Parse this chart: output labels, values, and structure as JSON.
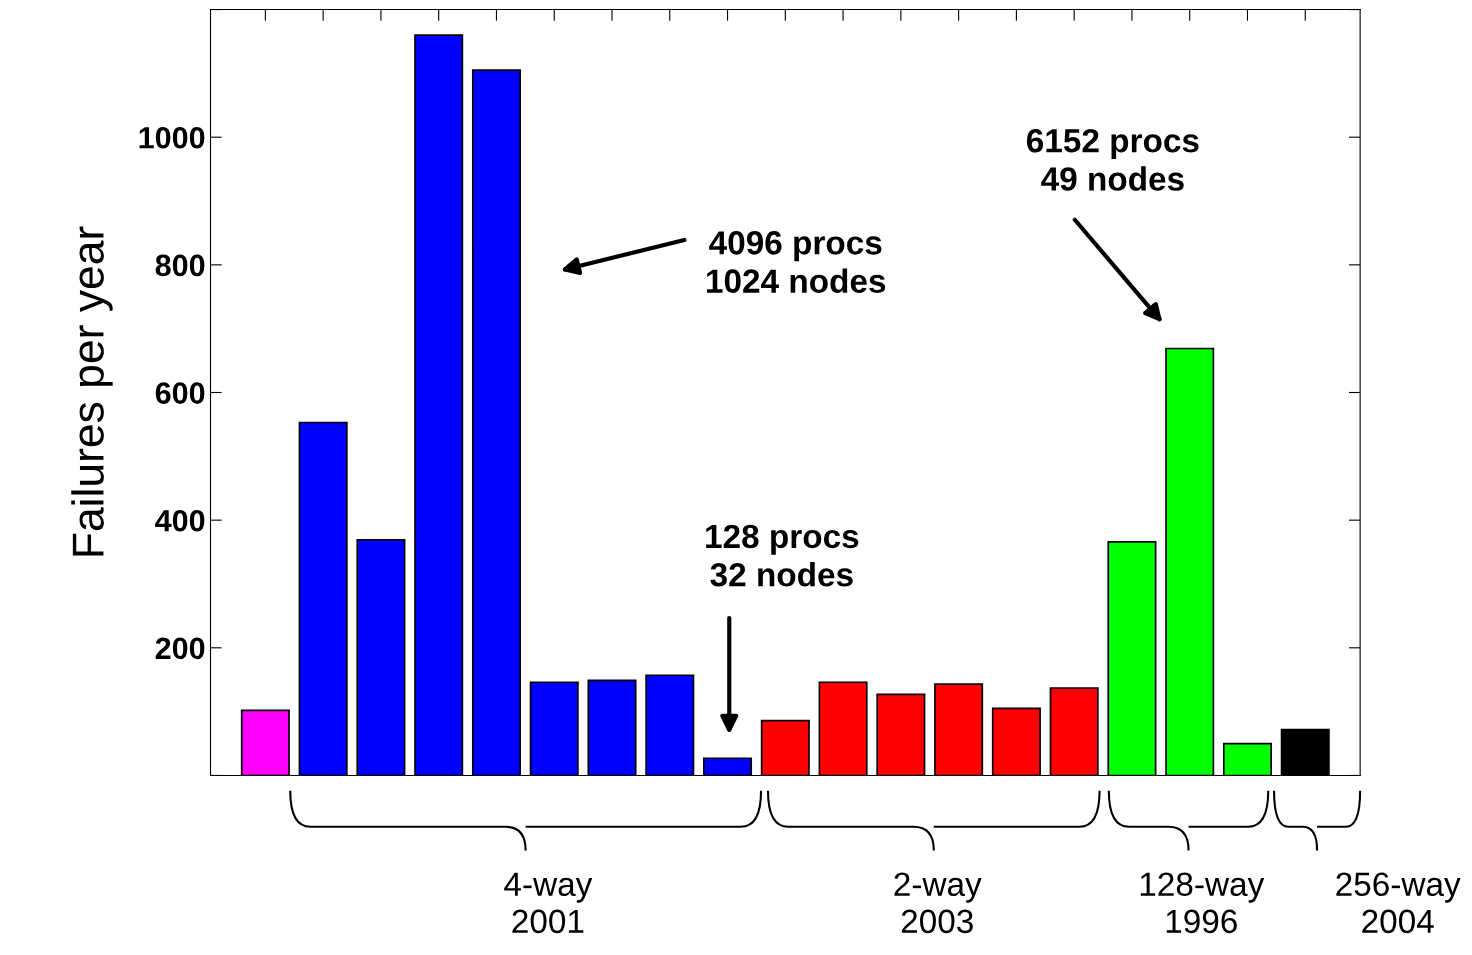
{
  "chart_data": {
    "type": "bar",
    "ylabel": "Failures per year",
    "categories": [
      null,
      null,
      null,
      null,
      null,
      null,
      null,
      null,
      null,
      null,
      null,
      null,
      null,
      null,
      null,
      null,
      null,
      null,
      null
    ],
    "values": [
      102,
      553,
      369,
      1160,
      1105,
      146,
      149,
      157,
      27,
      86,
      146,
      127,
      143,
      105,
      137,
      366,
      669,
      50,
      72
    ],
    "colors": [
      "#ff00ff",
      "#0000ff",
      "#0000ff",
      "#0000ff",
      "#0000ff",
      "#0000ff",
      "#0000ff",
      "#0000ff",
      "#0000ff",
      "#ff0000",
      "#ff0000",
      "#ff0000",
      "#ff0000",
      "#ff0000",
      "#ff0000",
      "#00ff00",
      "#00ff00",
      "#00ff00",
      "#000000"
    ],
    "ylim": [
      0,
      1200
    ],
    "yticks": [
      {
        "value": 0,
        "label": null
      },
      200,
      400,
      600,
      800,
      1000,
      {
        "value": 1200,
        "label": null
      }
    ],
    "grid": false,
    "annotations": [
      "4096 procs\n1024 nodes",
      "128 procs\n32 nodes",
      "6152 procs\n49 nodes",
      "4-way\n2001",
      "2-way\n2003",
      "128-way\n1996",
      "256-way\n2004"
    ]
  }
}
